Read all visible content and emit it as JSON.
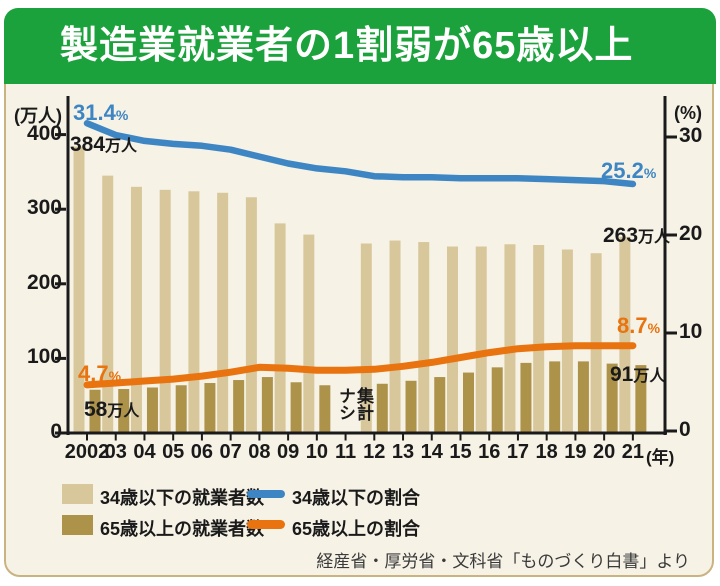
{
  "chart_data": {
    "type": "bar+line",
    "title": "製造業就業者の1割弱が65歳以上",
    "categories": [
      "2002",
      "03",
      "04",
      "05",
      "06",
      "07",
      "08",
      "09",
      "10",
      "11",
      "12",
      "13",
      "14",
      "15",
      "16",
      "17",
      "18",
      "19",
      "20",
      "21"
    ],
    "x_axis_unit": "(年)",
    "left_axis": {
      "unit": "(万人)",
      "ticks": [
        0,
        100,
        200,
        300,
        400
      ],
      "range": [
        0,
        400
      ]
    },
    "right_axis": {
      "unit": "(%)",
      "ticks": [
        0,
        10,
        20,
        30
      ],
      "range": [
        0,
        30
      ]
    },
    "no_data_year": "11",
    "series": [
      {
        "name": "34歳以下の就業者数",
        "type": "bar",
        "axis": "left",
        "color": "#d9c79c",
        "values": [
          384,
          345,
          330,
          326,
          324,
          322,
          316,
          281,
          266,
          null,
          254,
          258,
          256,
          250,
          250,
          253,
          252,
          246,
          241,
          263
        ]
      },
      {
        "name": "65歳以上の就業者数",
        "type": "bar",
        "axis": "left",
        "color": "#ad924a",
        "values": [
          58,
          59,
          61,
          64,
          67,
          71,
          75,
          68,
          64,
          null,
          66,
          70,
          75,
          81,
          88,
          94,
          96,
          96,
          93,
          91
        ]
      },
      {
        "name": "34歳以下の割合",
        "type": "line",
        "axis": "right",
        "color": "#3e86c3",
        "values": [
          31.4,
          30.2,
          29.6,
          29.3,
          29.1,
          28.7,
          28.0,
          27.3,
          26.8,
          26.5,
          26.0,
          25.9,
          25.9,
          25.8,
          25.8,
          25.8,
          25.7,
          25.6,
          25.5,
          25.2
        ]
      },
      {
        "name": "65歳以上の割合",
        "type": "line",
        "axis": "right",
        "color": "#e8730f",
        "values": [
          4.7,
          4.9,
          5.1,
          5.3,
          5.6,
          6.0,
          6.5,
          6.4,
          6.2,
          6.2,
          6.3,
          6.6,
          7.0,
          7.5,
          8.0,
          8.4,
          8.6,
          8.7,
          8.7,
          8.7
        ]
      }
    ],
    "colors": {
      "header_green": "#1ca23c",
      "background": "#f6f2e6",
      "card_border": "#c9b380",
      "axis_text": "#1a1a1a"
    }
  },
  "annotations": {
    "young_ratio_start": {
      "value": "31.4",
      "unit": "%"
    },
    "young_ratio_end": {
      "value": "25.2",
      "unit": "%"
    },
    "old_ratio_start": {
      "value": "4.7",
      "unit": "%"
    },
    "old_ratio_end": {
      "value": "8.7",
      "unit": "%"
    },
    "young_count_start": {
      "value": "384",
      "unit": "万人"
    },
    "young_count_end": {
      "value": "263",
      "unit": "万人"
    },
    "old_count_start": {
      "value": "58",
      "unit": "万人"
    },
    "old_count_end": {
      "value": "91",
      "unit": "万人"
    },
    "no_data_note": "集計\nナシ"
  },
  "legend": {
    "items": [
      {
        "label": "34歳以下の就業者数"
      },
      {
        "label": "65歳以上の就業者数"
      },
      {
        "label": "34歳以下の割合"
      },
      {
        "label": "65歳以上の割合"
      }
    ]
  },
  "source": "経産省・厚労省・文科省「ものづくり白書」より"
}
